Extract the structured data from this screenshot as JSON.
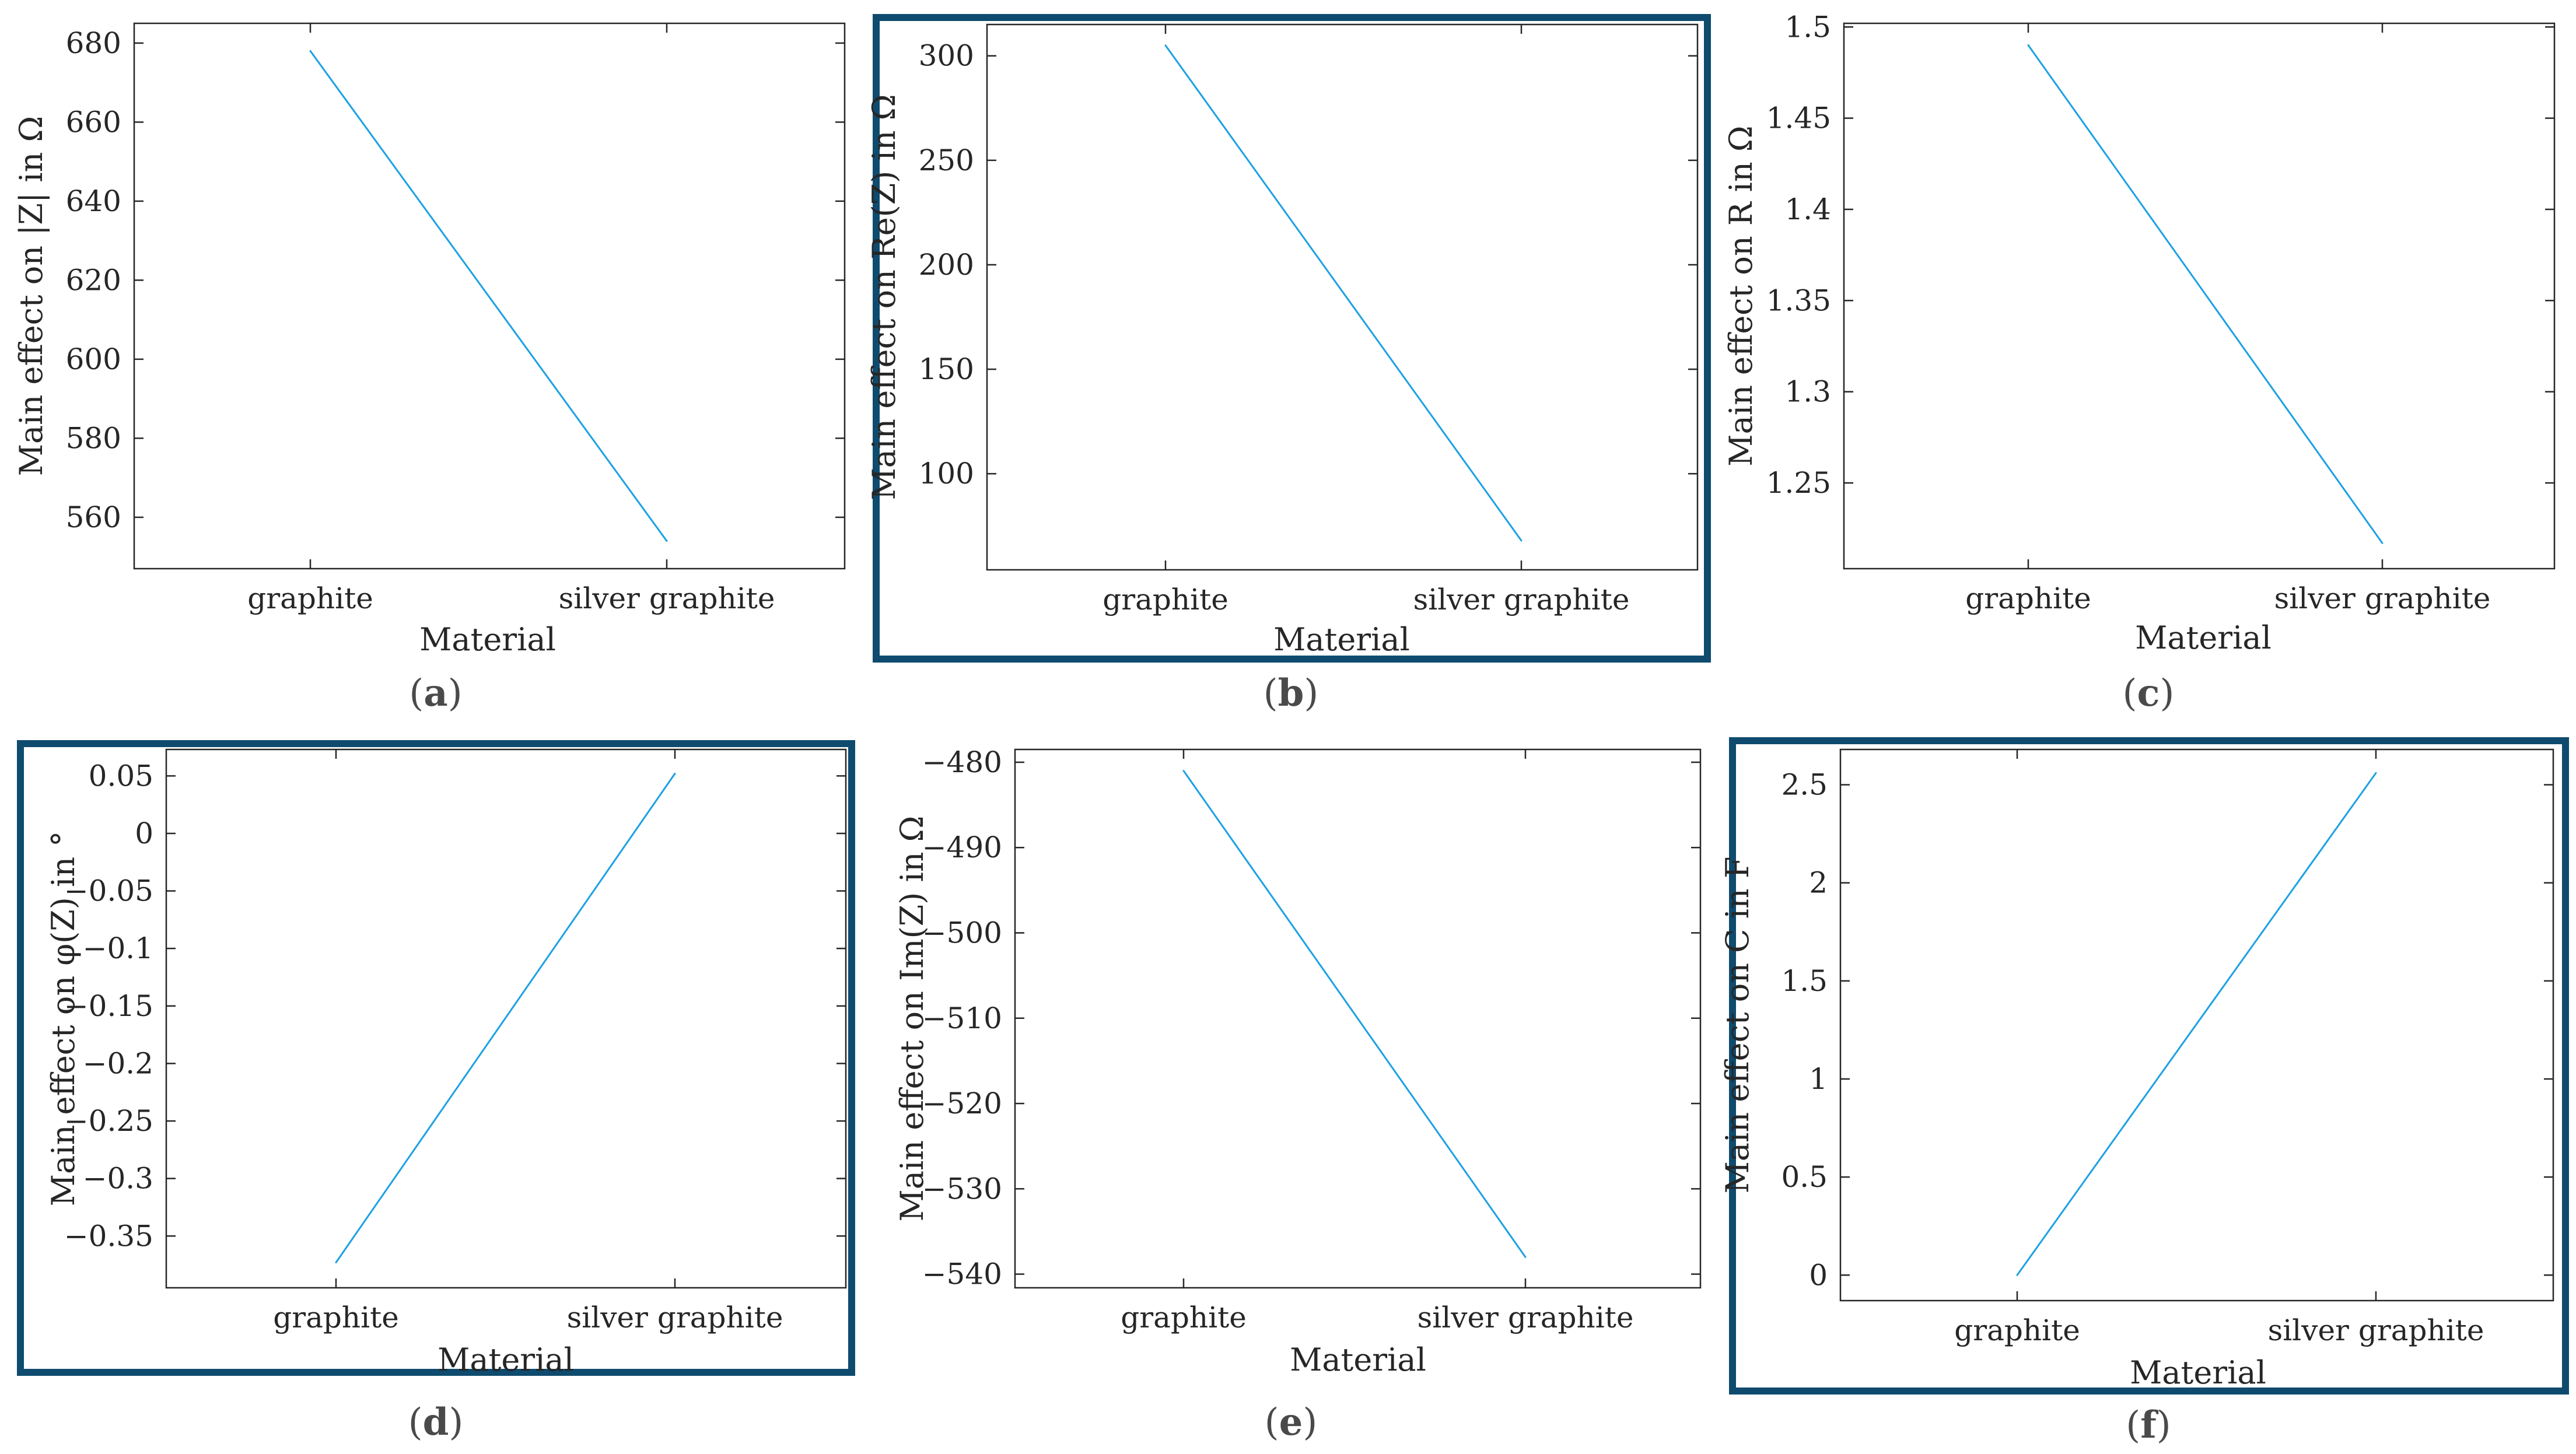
{
  "figure": {
    "accent_color": "#0e4b6e",
    "line_color": "#1ba1e2",
    "axis_color": "#262626",
    "grid": false
  },
  "chart_data": [
    {
      "type": "line",
      "panel": "a",
      "caption_open": "(",
      "caption_letter": "a",
      "caption_close": ")",
      "categories": [
        "graphite",
        "silver graphite"
      ],
      "values": [
        678,
        554
      ],
      "xlabel": "Material",
      "ylabel": "Main effect on |Z| in Ω",
      "ylim": [
        547,
        685
      ],
      "yticks": [
        560,
        580,
        600,
        620,
        640,
        660,
        680
      ],
      "ytick_labels": [
        "560",
        "580",
        "600",
        "620",
        "640",
        "660",
        "680"
      ],
      "highlighted": false
    },
    {
      "type": "line",
      "panel": "b",
      "caption_open": "(",
      "caption_letter": "b",
      "caption_close": ")",
      "categories": [
        "graphite",
        "silver graphite"
      ],
      "values": [
        305,
        68
      ],
      "xlabel": "Material",
      "ylabel": "Main effect on Re(Z) in Ω",
      "ylim": [
        54,
        315
      ],
      "yticks": [
        100,
        150,
        200,
        250,
        300
      ],
      "ytick_labels": [
        "100",
        "150",
        "200",
        "250",
        "300"
      ],
      "highlighted": true
    },
    {
      "type": "line",
      "panel": "c",
      "caption_open": "(",
      "caption_letter": "c",
      "caption_close": ")",
      "categories": [
        "graphite",
        "silver graphite"
      ],
      "values": [
        1.49,
        1.217
      ],
      "xlabel": "Material",
      "ylabel": "Main effect on R in Ω",
      "ylim": [
        1.203,
        1.502
      ],
      "yticks": [
        1.25,
        1.3,
        1.35,
        1.4,
        1.45,
        1.5
      ],
      "ytick_labels": [
        "1.25",
        "1.3",
        "1.35",
        "1.4",
        "1.45",
        "1.5"
      ],
      "highlighted": false
    },
    {
      "type": "line",
      "panel": "d",
      "caption_open": "(",
      "caption_letter": "d",
      "caption_close": ")",
      "categories": [
        "graphite",
        "silver graphite"
      ],
      "values": [
        -0.373,
        0.052
      ],
      "xlabel": "Material",
      "ylabel": "Main effect on φ(Z) in °",
      "ylim": [
        -0.395,
        0.073
      ],
      "yticks": [
        -0.35,
        -0.3,
        -0.25,
        -0.2,
        -0.15,
        -0.1,
        -0.05,
        0,
        0.05
      ],
      "ytick_labels": [
        "−0.35",
        "−0.3",
        "−0.25",
        "−0.2",
        "−0.15",
        "−0.1",
        "−0.05",
        "0",
        "0.05"
      ],
      "highlighted": true
    },
    {
      "type": "line",
      "panel": "e",
      "caption_open": "(",
      "caption_letter": "e",
      "caption_close": ")",
      "categories": [
        "graphite",
        "silver graphite"
      ],
      "values": [
        -481,
        -538
      ],
      "xlabel": "Material",
      "ylabel": "Main effect on Im(Z) in Ω",
      "ylim": [
        -541.6,
        -478.5
      ],
      "yticks": [
        -540,
        -530,
        -520,
        -510,
        -500,
        -490,
        -480
      ],
      "ytick_labels": [
        "−540",
        "−530",
        "−520",
        "−510",
        "−500",
        "−490",
        "−480"
      ],
      "highlighted": false
    },
    {
      "type": "line",
      "panel": "f",
      "caption_open": "(",
      "caption_letter": "f",
      "caption_close": ")",
      "categories": [
        "graphite",
        "silver graphite"
      ],
      "values": [
        0,
        2.56
      ],
      "xlabel": "Material",
      "ylabel": "Main effect on C in F",
      "ylim": [
        -0.13,
        2.68
      ],
      "yticks": [
        0,
        0.5,
        1,
        1.5,
        2,
        2.5
      ],
      "ytick_labels": [
        "0",
        "0.5",
        "1",
        "1.5",
        "2",
        "2.5"
      ],
      "highlighted": true
    }
  ]
}
